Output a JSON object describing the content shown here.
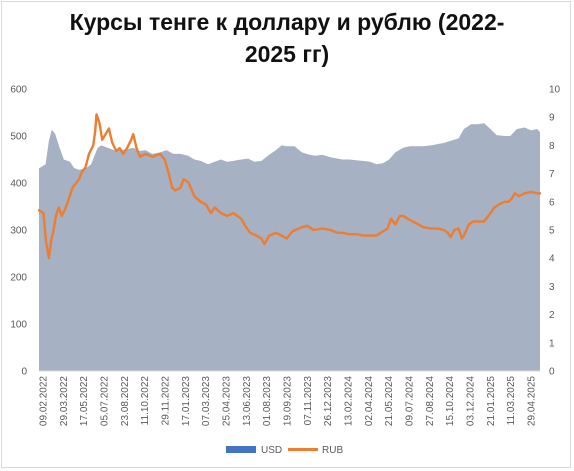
{
  "chart_data": {
    "type": "area+line",
    "title_lines": [
      "Курсы тенге к доллару и рублю (2022-",
      "2025 гг)"
    ],
    "y_left_ticks": [
      "0",
      "100",
      "200",
      "300",
      "400",
      "500",
      "600"
    ],
    "y_right_ticks": [
      "0",
      "1",
      "2",
      "3",
      "4",
      "5",
      "6",
      "7",
      "8",
      "9",
      "10"
    ],
    "y_left_lim": [
      0,
      600
    ],
    "y_right_lim": [
      0,
      10
    ],
    "x_ticks": [
      "09.02.2022",
      "29.03.2022",
      "17.05.2022",
      "05.07.2022",
      "23.08.2022",
      "11.10.2022",
      "29.11.2022",
      "17.01.2023",
      "07.03.2023",
      "25.04.2023",
      "13.06.2023",
      "01.08.2023",
      "19.09.2023",
      "07.11.2023",
      "26.12.2023",
      "13.02.2024",
      "02.04.2024",
      "21.05.2024",
      "09.07.2024",
      "27.08.2024",
      "15.10.2024",
      "03.12.2024",
      "21.01.2025",
      "11.03.2025",
      "29.04.2025"
    ],
    "series": [
      {
        "name": "USD",
        "axis": "left",
        "type": "area",
        "color": "#a6b1c3",
        "points": [
          [
            "2022-02-09",
            431
          ],
          [
            "2022-02-25",
            440
          ],
          [
            "2022-03-05",
            490
          ],
          [
            "2022-03-12",
            513
          ],
          [
            "2022-03-20",
            505
          ],
          [
            "2022-03-29",
            480
          ],
          [
            "2022-04-10",
            450
          ],
          [
            "2022-04-25",
            445
          ],
          [
            "2022-05-05",
            432
          ],
          [
            "2022-05-17",
            428
          ],
          [
            "2022-06-01",
            430
          ],
          [
            "2022-06-15",
            440
          ],
          [
            "2022-07-01",
            475
          ],
          [
            "2022-07-10",
            480
          ],
          [
            "2022-07-25",
            475
          ],
          [
            "2022-08-10",
            470
          ],
          [
            "2022-08-25",
            470
          ],
          [
            "2022-09-10",
            472
          ],
          [
            "2022-09-25",
            475
          ],
          [
            "2022-10-11",
            468
          ],
          [
            "2022-10-25",
            470
          ],
          [
            "2022-11-10",
            462
          ],
          [
            "2022-11-29",
            465
          ],
          [
            "2022-12-15",
            470
          ],
          [
            "2022-12-31",
            462
          ],
          [
            "2023-01-17",
            462
          ],
          [
            "2023-02-05",
            458
          ],
          [
            "2023-02-20",
            450
          ],
          [
            "2023-03-07",
            447
          ],
          [
            "2023-03-25",
            440
          ],
          [
            "2023-04-10",
            445
          ],
          [
            "2023-04-25",
            450
          ],
          [
            "2023-05-10",
            445
          ],
          [
            "2023-05-25",
            447
          ],
          [
            "2023-06-13",
            450
          ],
          [
            "2023-06-30",
            452
          ],
          [
            "2023-07-15",
            445
          ],
          [
            "2023-08-01",
            447
          ],
          [
            "2023-08-20",
            460
          ],
          [
            "2023-09-05",
            470
          ],
          [
            "2023-09-19",
            480
          ],
          [
            "2023-10-01",
            478
          ],
          [
            "2023-10-20",
            478
          ],
          [
            "2023-11-07",
            465
          ],
          [
            "2023-11-25",
            460
          ],
          [
            "2023-12-10",
            458
          ],
          [
            "2023-12-26",
            460
          ],
          [
            "2024-01-15",
            455
          ],
          [
            "2024-02-01",
            452
          ],
          [
            "2024-02-13",
            450
          ],
          [
            "2024-03-01",
            450
          ],
          [
            "2024-03-20",
            448
          ],
          [
            "2024-04-02",
            447
          ],
          [
            "2024-04-20",
            445
          ],
          [
            "2024-05-05",
            440
          ],
          [
            "2024-05-21",
            442
          ],
          [
            "2024-06-05",
            450
          ],
          [
            "2024-06-20",
            465
          ],
          [
            "2024-07-09",
            475
          ],
          [
            "2024-07-25",
            478
          ],
          [
            "2024-08-10",
            478
          ],
          [
            "2024-08-27",
            478
          ],
          [
            "2024-09-15",
            480
          ],
          [
            "2024-10-01",
            483
          ],
          [
            "2024-10-15",
            485
          ],
          [
            "2024-11-01",
            490
          ],
          [
            "2024-11-20",
            495
          ],
          [
            "2024-12-03",
            515
          ],
          [
            "2024-12-20",
            525
          ],
          [
            "2025-01-05",
            525
          ],
          [
            "2025-01-21",
            527
          ],
          [
            "2025-02-05",
            515
          ],
          [
            "2025-02-20",
            502
          ],
          [
            "2025-03-11",
            500
          ],
          [
            "2025-03-25",
            500
          ],
          [
            "2025-04-10",
            515
          ],
          [
            "2025-04-29",
            518
          ],
          [
            "2025-05-15",
            512
          ],
          [
            "2025-05-29",
            515
          ],
          [
            "2025-06-05",
            508
          ]
        ]
      },
      {
        "name": "RUB",
        "axis": "right",
        "type": "line",
        "color": "#ed7d31",
        "points": [
          [
            "2022-02-09",
            5.7
          ],
          [
            "2022-02-20",
            5.6
          ],
          [
            "2022-02-26",
            4.6
          ],
          [
            "2022-03-05",
            4.0
          ],
          [
            "2022-03-10",
            4.6
          ],
          [
            "2022-03-15",
            4.9
          ],
          [
            "2022-03-22",
            5.5
          ],
          [
            "2022-03-29",
            5.8
          ],
          [
            "2022-04-05",
            5.5
          ],
          [
            "2022-04-12",
            5.7
          ],
          [
            "2022-04-20",
            6.0
          ],
          [
            "2022-05-01",
            6.5
          ],
          [
            "2022-05-17",
            6.8
          ],
          [
            "2022-05-25",
            7.1
          ],
          [
            "2022-06-01",
            7.2
          ],
          [
            "2022-06-10",
            7.7
          ],
          [
            "2022-06-20",
            8.0
          ],
          [
            "2022-06-25",
            8.5
          ],
          [
            "2022-06-28",
            9.1
          ],
          [
            "2022-07-05",
            8.8
          ],
          [
            "2022-07-12",
            8.2
          ],
          [
            "2022-07-20",
            8.4
          ],
          [
            "2022-07-28",
            8.6
          ],
          [
            "2022-08-05",
            8.1
          ],
          [
            "2022-08-15",
            7.8
          ],
          [
            "2022-08-23",
            7.9
          ],
          [
            "2022-09-01",
            7.7
          ],
          [
            "2022-09-10",
            7.9
          ],
          [
            "2022-09-20",
            8.2
          ],
          [
            "2022-09-25",
            8.4
          ],
          [
            "2022-10-03",
            7.9
          ],
          [
            "2022-10-11",
            7.6
          ],
          [
            "2022-10-25",
            7.7
          ],
          [
            "2022-11-10",
            7.6
          ],
          [
            "2022-11-29",
            7.7
          ],
          [
            "2022-12-10",
            7.5
          ],
          [
            "2022-12-20",
            7.0
          ],
          [
            "2022-12-28",
            6.5
          ],
          [
            "2023-01-05",
            6.4
          ],
          [
            "2023-01-17",
            6.5
          ],
          [
            "2023-01-25",
            6.8
          ],
          [
            "2023-02-05",
            6.7
          ],
          [
            "2023-02-20",
            6.2
          ],
          [
            "2023-03-07",
            6.0
          ],
          [
            "2023-03-20",
            5.9
          ],
          [
            "2023-04-01",
            5.6
          ],
          [
            "2023-04-10",
            5.8
          ],
          [
            "2023-04-25",
            5.6
          ],
          [
            "2023-05-10",
            5.5
          ],
          [
            "2023-05-25",
            5.6
          ],
          [
            "2023-06-13",
            5.4
          ],
          [
            "2023-06-25",
            5.1
          ],
          [
            "2023-07-05",
            4.9
          ],
          [
            "2023-07-20",
            4.8
          ],
          [
            "2023-08-01",
            4.7
          ],
          [
            "2023-08-08",
            4.5
          ],
          [
            "2023-08-20",
            4.8
          ],
          [
            "2023-09-05",
            4.9
          ],
          [
            "2023-09-19",
            4.8
          ],
          [
            "2023-10-01",
            4.7
          ],
          [
            "2023-10-15",
            4.95
          ],
          [
            "2023-11-07",
            5.1
          ],
          [
            "2023-11-20",
            5.15
          ],
          [
            "2023-12-05",
            5.0
          ],
          [
            "2023-12-26",
            5.05
          ],
          [
            "2024-01-15",
            5.0
          ],
          [
            "2024-02-01",
            4.9
          ],
          [
            "2024-02-13",
            4.9
          ],
          [
            "2024-03-01",
            4.85
          ],
          [
            "2024-03-20",
            4.85
          ],
          [
            "2024-04-02",
            4.8
          ],
          [
            "2024-04-20",
            4.8
          ],
          [
            "2024-05-05",
            4.8
          ],
          [
            "2024-05-21",
            4.95
          ],
          [
            "2024-06-01",
            5.05
          ],
          [
            "2024-06-10",
            5.4
          ],
          [
            "2024-06-20",
            5.2
          ],
          [
            "2024-07-01",
            5.5
          ],
          [
            "2024-07-09",
            5.5
          ],
          [
            "2024-07-20",
            5.4
          ],
          [
            "2024-08-01",
            5.3
          ],
          [
            "2024-08-15",
            5.2
          ],
          [
            "2024-08-27",
            5.1
          ],
          [
            "2024-09-15",
            5.05
          ],
          [
            "2024-10-01",
            5.05
          ],
          [
            "2024-10-15",
            5.0
          ],
          [
            "2024-10-25",
            4.9
          ],
          [
            "2024-11-01",
            4.75
          ],
          [
            "2024-11-10",
            5.0
          ],
          [
            "2024-11-20",
            5.05
          ],
          [
            "2024-11-28",
            4.7
          ],
          [
            "2024-12-03",
            4.8
          ],
          [
            "2024-12-15",
            5.2
          ],
          [
            "2024-12-25",
            5.3
          ],
          [
            "2025-01-10",
            5.3
          ],
          [
            "2025-01-21",
            5.3
          ],
          [
            "2025-02-05",
            5.6
          ],
          [
            "2025-02-15",
            5.8
          ],
          [
            "2025-02-25",
            5.9
          ],
          [
            "2025-03-11",
            6.0
          ],
          [
            "2025-03-20",
            6.0
          ],
          [
            "2025-03-28",
            6.1
          ],
          [
            "2025-04-05",
            6.3
          ],
          [
            "2025-04-15",
            6.2
          ],
          [
            "2025-04-29",
            6.3
          ],
          [
            "2025-05-15",
            6.35
          ],
          [
            "2025-05-29",
            6.3
          ],
          [
            "2025-06-05",
            6.3
          ]
        ]
      }
    ],
    "legend_position": "bottom",
    "grid": false
  }
}
